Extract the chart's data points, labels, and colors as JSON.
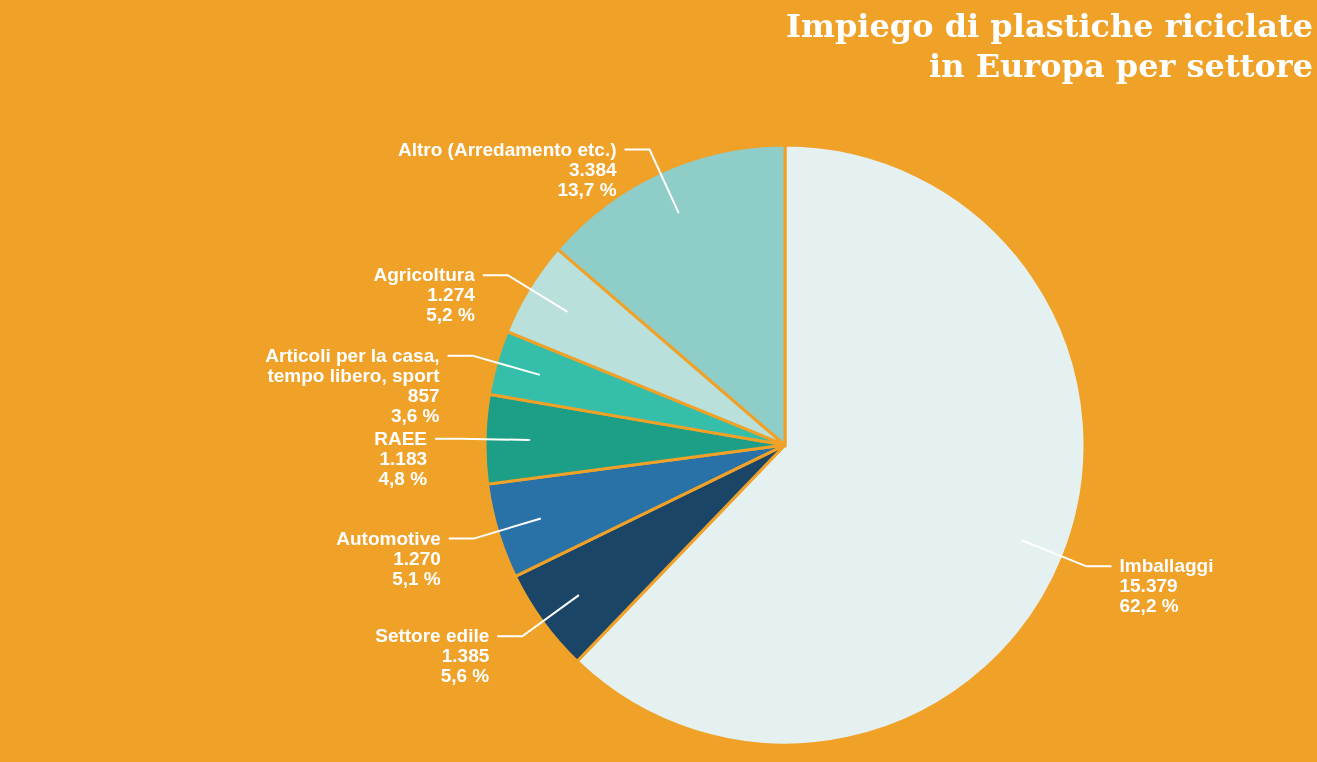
{
  "chart_data": {
    "type": "pie",
    "title": "Impiego di plastiche riciclate\nin Europa per settore",
    "categories": [
      "Imballaggi",
      "Settore edile",
      "Automotive",
      "RAEE",
      "Articoli per la casa, tempo libero, sport",
      "Agricoltura",
      "Altro (Arredamento etc.)"
    ],
    "values": [
      15379,
      1385,
      1270,
      1183,
      857,
      1274,
      3384
    ],
    "value_labels": [
      "15.379\n62,2 %",
      "1.385\n5,6 %",
      "1.270\n5,1 %",
      "1.183\n4,8 %",
      "857\n3,6 %",
      "1.274\n5,2 %",
      "3.384\n13,7 %"
    ],
    "colors": [
      "#e4f1f0",
      "#1a4567",
      "#2872a8",
      "#1d9e87",
      "#35bfaa",
      "#b9e0da",
      "#8fcdc8"
    ]
  }
}
